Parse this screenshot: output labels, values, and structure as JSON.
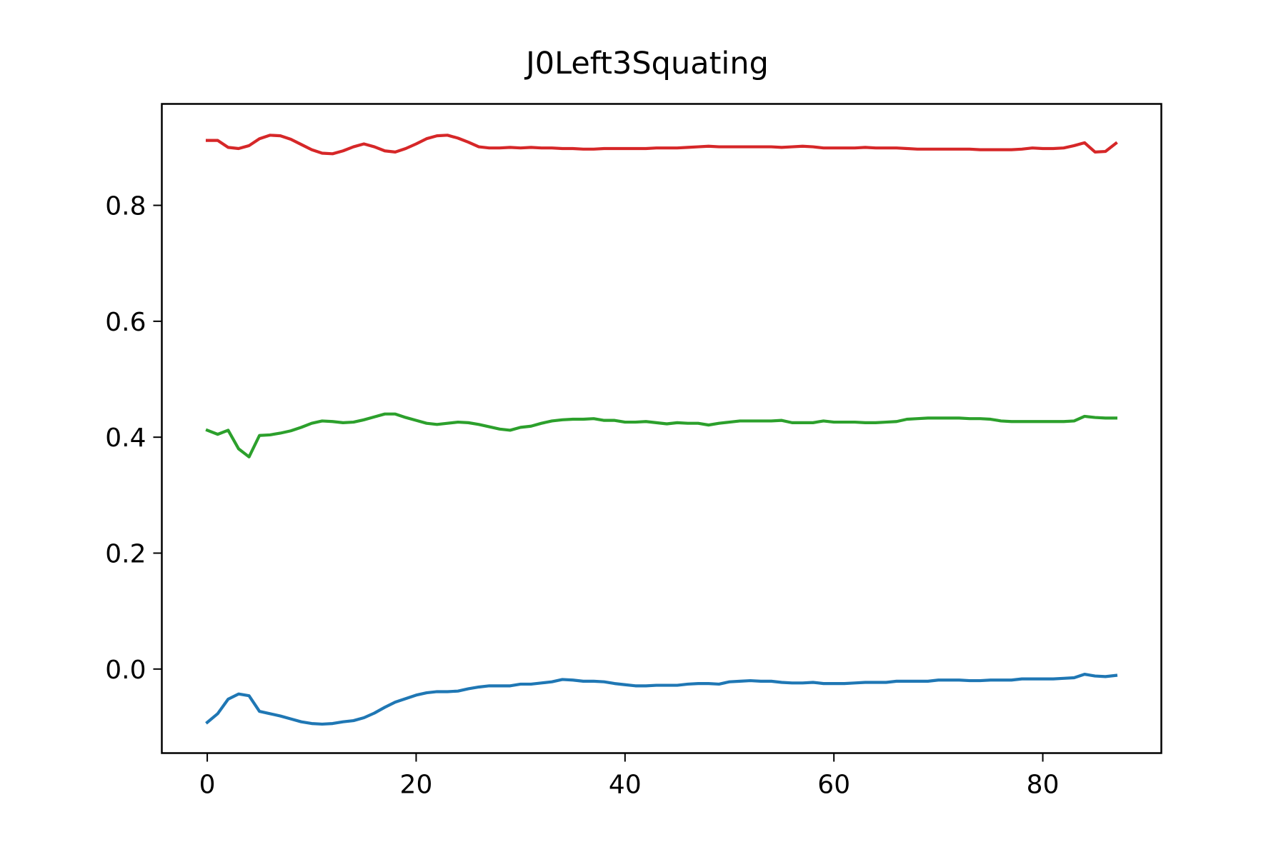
{
  "chart_data": {
    "type": "line",
    "title": "J0Left3Squating",
    "xlabel": "",
    "ylabel": "",
    "xlim": [
      -4.35,
      91.35
    ],
    "ylim": [
      -0.145,
      0.975
    ],
    "xticks": [
      0,
      20,
      40,
      60,
      80
    ],
    "yticks": [
      0.0,
      0.2,
      0.4,
      0.6,
      0.8
    ],
    "xtick_labels": [
      "0",
      "20",
      "40",
      "60",
      "80"
    ],
    "ytick_labels": [
      "0.0",
      "0.2",
      "0.4",
      "0.6",
      "0.8"
    ],
    "grid": false,
    "legend": "none",
    "x": [
      0,
      1,
      2,
      3,
      4,
      5,
      6,
      7,
      8,
      9,
      10,
      11,
      12,
      13,
      14,
      15,
      16,
      17,
      18,
      19,
      20,
      21,
      22,
      23,
      24,
      25,
      26,
      27,
      28,
      29,
      30,
      31,
      32,
      33,
      34,
      35,
      36,
      37,
      38,
      39,
      40,
      41,
      42,
      43,
      44,
      45,
      46,
      47,
      48,
      49,
      50,
      51,
      52,
      53,
      54,
      55,
      56,
      57,
      58,
      59,
      60,
      61,
      62,
      63,
      64,
      65,
      66,
      67,
      68,
      69,
      70,
      71,
      72,
      73,
      74,
      75,
      76,
      77,
      78,
      79,
      80,
      81,
      82,
      83,
      84,
      85,
      86,
      87
    ],
    "series": [
      {
        "color": "#d62728",
        "values": [
          0.912,
          0.912,
          0.9,
          0.898,
          0.903,
          0.915,
          0.921,
          0.92,
          0.914,
          0.905,
          0.896,
          0.89,
          0.889,
          0.894,
          0.901,
          0.906,
          0.901,
          0.894,
          0.892,
          0.898,
          0.906,
          0.915,
          0.92,
          0.921,
          0.916,
          0.909,
          0.901,
          0.899,
          0.899,
          0.9,
          0.899,
          0.9,
          0.899,
          0.899,
          0.898,
          0.898,
          0.897,
          0.897,
          0.898,
          0.898,
          0.898,
          0.898,
          0.898,
          0.899,
          0.899,
          0.899,
          0.9,
          0.901,
          0.902,
          0.901,
          0.901,
          0.901,
          0.901,
          0.901,
          0.901,
          0.9,
          0.901,
          0.902,
          0.901,
          0.899,
          0.899,
          0.899,
          0.899,
          0.9,
          0.899,
          0.899,
          0.899,
          0.898,
          0.897,
          0.897,
          0.897,
          0.897,
          0.897,
          0.897,
          0.896,
          0.896,
          0.896,
          0.896,
          0.897,
          0.899,
          0.898,
          0.898,
          0.899,
          0.903,
          0.908,
          0.892,
          0.893,
          0.907
        ]
      },
      {
        "color": "#2ca02c",
        "values": [
          0.412,
          0.405,
          0.412,
          0.38,
          0.366,
          0.403,
          0.404,
          0.407,
          0.411,
          0.417,
          0.424,
          0.428,
          0.427,
          0.425,
          0.426,
          0.43,
          0.435,
          0.44,
          0.44,
          0.434,
          0.429,
          0.424,
          0.422,
          0.424,
          0.426,
          0.425,
          0.422,
          0.418,
          0.414,
          0.412,
          0.417,
          0.419,
          0.424,
          0.428,
          0.43,
          0.431,
          0.431,
          0.432,
          0.429,
          0.429,
          0.426,
          0.426,
          0.427,
          0.425,
          0.423,
          0.425,
          0.424,
          0.424,
          0.421,
          0.424,
          0.426,
          0.428,
          0.428,
          0.428,
          0.428,
          0.429,
          0.425,
          0.425,
          0.425,
          0.428,
          0.426,
          0.426,
          0.426,
          0.425,
          0.425,
          0.426,
          0.427,
          0.431,
          0.432,
          0.433,
          0.433,
          0.433,
          0.433,
          0.432,
          0.432,
          0.431,
          0.428,
          0.427,
          0.427,
          0.427,
          0.427,
          0.427,
          0.427,
          0.428,
          0.436,
          0.434,
          0.433,
          0.433
        ]
      },
      {
        "color": "#1f77b4",
        "values": [
          -0.092,
          -0.077,
          -0.052,
          -0.043,
          -0.046,
          -0.073,
          -0.077,
          -0.081,
          -0.086,
          -0.091,
          -0.094,
          -0.095,
          -0.094,
          -0.091,
          -0.089,
          -0.084,
          -0.076,
          -0.066,
          -0.057,
          -0.051,
          -0.045,
          -0.041,
          -0.039,
          -0.039,
          -0.038,
          -0.034,
          -0.031,
          -0.029,
          -0.029,
          -0.029,
          -0.026,
          -0.026,
          -0.024,
          -0.022,
          -0.018,
          -0.019,
          -0.021,
          -0.021,
          -0.022,
          -0.025,
          -0.027,
          -0.029,
          -0.029,
          -0.028,
          -0.028,
          -0.028,
          -0.026,
          -0.025,
          -0.025,
          -0.026,
          -0.022,
          -0.021,
          -0.02,
          -0.021,
          -0.021,
          -0.023,
          -0.024,
          -0.024,
          -0.023,
          -0.025,
          -0.025,
          -0.025,
          -0.024,
          -0.023,
          -0.023,
          -0.023,
          -0.021,
          -0.021,
          -0.021,
          -0.021,
          -0.019,
          -0.019,
          -0.019,
          -0.02,
          -0.02,
          -0.019,
          -0.019,
          -0.019,
          -0.017,
          -0.017,
          -0.017,
          -0.017,
          -0.016,
          -0.015,
          -0.009,
          -0.012,
          -0.013,
          -0.011
        ]
      }
    ]
  }
}
